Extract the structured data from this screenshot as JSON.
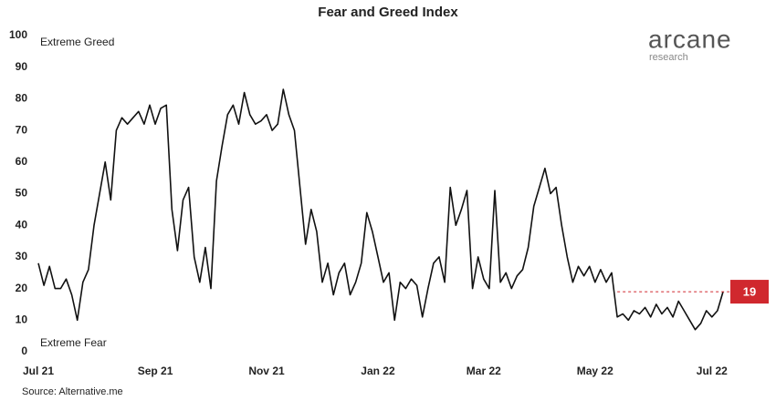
{
  "chart_data": {
    "type": "line",
    "title": "Fear and Greed Index",
    "categories": [
      "Jul 21",
      null,
      null,
      null,
      null,
      null,
      null,
      null,
      null,
      null,
      null,
      null,
      null,
      null,
      null,
      null,
      null,
      null,
      null,
      null,
      null,
      "Sep 21",
      null,
      null,
      null,
      null,
      null,
      null,
      null,
      null,
      null,
      null,
      null,
      null,
      null,
      null,
      null,
      null,
      null,
      null,
      null,
      "Nov 21",
      null,
      null,
      null,
      null,
      null,
      null,
      null,
      null,
      null,
      null,
      null,
      null,
      null,
      null,
      null,
      null,
      null,
      null,
      null,
      "Jan 22",
      null,
      null,
      null,
      null,
      null,
      null,
      null,
      null,
      null,
      null,
      null,
      null,
      null,
      null,
      null,
      null,
      null,
      null,
      "Mar 22",
      null,
      null,
      null,
      null,
      null,
      null,
      null,
      null,
      null,
      null,
      null,
      null,
      null,
      null,
      null,
      null,
      null,
      null,
      null,
      "May 22",
      null,
      null,
      null,
      null,
      null,
      null,
      null,
      null,
      null,
      null,
      null,
      null,
      null,
      null,
      null,
      null,
      null,
      null,
      null,
      null,
      "Jul 22",
      null,
      null
    ],
    "series": [
      {
        "name": "Fear and Greed Index",
        "color": "#111111",
        "values": [
          28,
          21,
          27,
          20,
          20,
          23,
          18,
          10,
          22,
          26,
          40,
          50,
          60,
          48,
          70,
          74,
          72,
          74,
          76,
          72,
          78,
          72,
          77,
          78,
          45,
          32,
          48,
          52,
          30,
          22,
          33,
          20,
          54,
          65,
          75,
          78,
          72,
          82,
          75,
          72,
          73,
          75,
          70,
          72,
          83,
          75,
          70,
          52,
          34,
          45,
          38,
          22,
          28,
          18,
          25,
          28,
          18,
          22,
          28,
          44,
          38,
          30,
          22,
          25,
          10,
          22,
          20,
          23,
          21,
          11,
          20,
          28,
          30,
          22,
          52,
          40,
          45,
          51,
          20,
          30,
          23,
          20,
          51,
          22,
          25,
          20,
          24,
          26,
          33,
          46,
          52,
          58,
          50,
          52,
          40,
          30,
          22,
          27,
          24,
          27,
          22,
          26,
          22,
          25,
          11,
          12,
          10,
          13,
          12,
          14,
          11,
          15,
          12,
          14,
          11,
          16,
          13,
          10,
          7,
          9,
          13,
          11,
          13,
          19
        ]
      }
    ],
    "ylim": [
      0,
      100
    ],
    "yticks": [
      0,
      10,
      20,
      30,
      40,
      50,
      60,
      70,
      80,
      90,
      100
    ],
    "annotations": {
      "top": "Extreme Greed",
      "bottom": "Extreme Fear"
    },
    "current_value": 19,
    "current_color": "#d0282e",
    "logo": {
      "name": "arcane",
      "sub": "research"
    },
    "source": "Source: Alternative.me"
  }
}
